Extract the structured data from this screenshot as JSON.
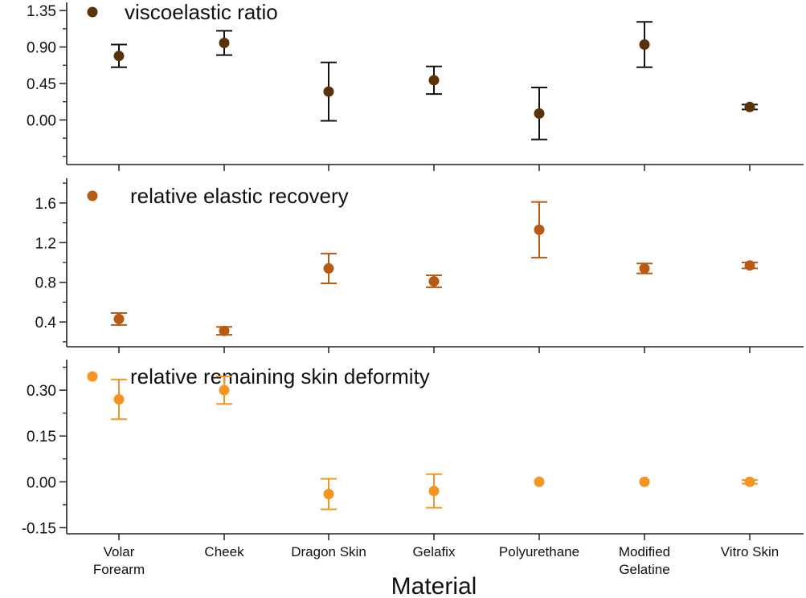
{
  "chart_data": {
    "type": "scatter",
    "xlabel": "Material",
    "categories": [
      [
        "Volar",
        "Forearm"
      ],
      [
        "Cheek"
      ],
      [
        "Dragon Skin"
      ],
      [
        "Gelafix"
      ],
      [
        "Polyurethane"
      ],
      [
        "Modified",
        "Gelatine"
      ],
      [
        "Vitro Skin"
      ]
    ],
    "panels": [
      {
        "legend": "viscoelastic ratio",
        "color": "#5a3209",
        "ylim": [
          -0.55,
          1.45
        ],
        "ticks": [
          0.0,
          0.45,
          0.9,
          1.35
        ],
        "tick_labels": [
          "0.00",
          "0.45",
          "0.90",
          "1.35"
        ],
        "minor_step": 0.225,
        "values": [
          0.79,
          0.95,
          0.35,
          0.49,
          0.08,
          0.93,
          0.16
        ],
        "errors": [
          0.14,
          0.15,
          0.36,
          0.17,
          0.32,
          0.28,
          0.03
        ]
      },
      {
        "legend": "relative elastic recovery",
        "color": "#b85a12",
        "ylim": [
          0.15,
          1.85
        ],
        "ticks": [
          0.4,
          0.8,
          1.2,
          1.6
        ],
        "tick_labels": [
          "0.4",
          "0.8",
          "1.2",
          "1.6"
        ],
        "minor_step": 0.2,
        "values": [
          0.43,
          0.31,
          0.94,
          0.81,
          1.33,
          0.94,
          0.97
        ],
        "errors": [
          0.06,
          0.04,
          0.15,
          0.06,
          0.28,
          0.05,
          0.03
        ]
      },
      {
        "legend": "relative remaining skin deformity",
        "color": "#f79421",
        "ylim": [
          -0.17,
          0.4
        ],
        "ticks": [
          -0.15,
          0.0,
          0.15,
          0.3
        ],
        "tick_labels": [
          "-0.15",
          "0.00",
          "0.15",
          "0.30"
        ],
        "minor_step": 0.075,
        "values": [
          0.27,
          0.3,
          -0.04,
          -0.03,
          0.0,
          0.0,
          0.0
        ],
        "errors": [
          0.065,
          0.045,
          0.05,
          0.055,
          0.0,
          0.0,
          0.006
        ]
      }
    ]
  }
}
